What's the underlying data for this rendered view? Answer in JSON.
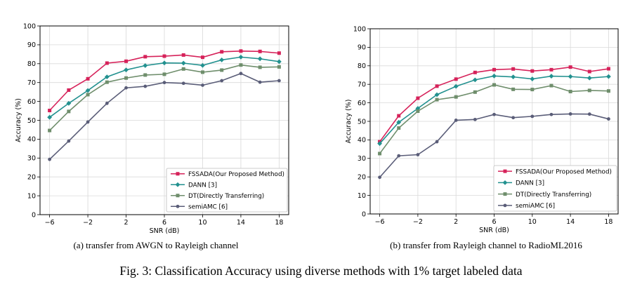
{
  "figure_caption": "Fig. 3: Classification Accuracy using diverse methods with 1% target labeled data",
  "colors": {
    "fssada": "#d6225a",
    "dann": "#22918f",
    "dt": "#6f8e6c",
    "semiamc": "#5a5d78",
    "grid": "#d9d9d9"
  },
  "chart_data": [
    {
      "type": "line",
      "caption": "(a) transfer from AWGN to Rayleigh channel",
      "xlabel": "SNR (dB)",
      "ylabel": "Accuracy (%)",
      "xlim": [
        -7,
        19
      ],
      "ylim": [
        0,
        100
      ],
      "xticks": [
        -6,
        -2,
        2,
        6,
        10,
        14,
        18
      ],
      "xtick_labels": [
        "−6",
        "−2",
        "2",
        "6",
        "10",
        "14",
        "18"
      ],
      "yticks": [
        0,
        10,
        20,
        30,
        40,
        50,
        60,
        70,
        80,
        90,
        100
      ],
      "grid": true,
      "legend_position": "bottom-right",
      "x": [
        -6,
        -4,
        -2,
        0,
        2,
        4,
        6,
        8,
        10,
        12,
        14,
        16,
        18
      ],
      "series": [
        {
          "name": "FSSADA(Our Proposed Method)",
          "key": "fssada",
          "marker": "square",
          "values": [
            55.2,
            66.0,
            72.0,
            80.3,
            81.3,
            83.7,
            84.0,
            84.6,
            83.4,
            86.3,
            86.7,
            86.5,
            85.6
          ]
        },
        {
          "name": "DANN [3]",
          "key": "dann",
          "marker": "diamond",
          "values": [
            51.6,
            59.0,
            65.8,
            73.0,
            76.7,
            79.0,
            80.4,
            80.3,
            79.1,
            82.0,
            83.5,
            82.6,
            81.1
          ]
        },
        {
          "name": "DT(Directly Transferring)",
          "key": "dt",
          "marker": "square",
          "values": [
            44.6,
            54.7,
            63.6,
            70.2,
            72.4,
            74.0,
            74.4,
            77.2,
            75.5,
            76.6,
            79.3,
            78.1,
            78.3
          ]
        },
        {
          "name": "semiAMC [6]",
          "key": "semiamc",
          "marker": "circle",
          "values": [
            29.3,
            39.0,
            49.1,
            59.0,
            67.2,
            68.0,
            70.0,
            69.6,
            68.6,
            71.0,
            74.8,
            70.2,
            71.0
          ]
        }
      ]
    },
    {
      "type": "line",
      "caption": "(b) transfer from Rayleigh channel to RadioML2016",
      "xlabel": "SNR (dB)",
      "ylabel": "Accuracy (%)",
      "xlim": [
        -7,
        19
      ],
      "ylim": [
        0,
        100
      ],
      "xticks": [
        -6,
        -2,
        2,
        6,
        10,
        14,
        18
      ],
      "xtick_labels": [
        "−6",
        "−2",
        "2",
        "6",
        "10",
        "14",
        "18"
      ],
      "yticks": [
        0,
        10,
        20,
        30,
        40,
        50,
        60,
        70,
        80,
        90,
        100
      ],
      "grid": true,
      "legend_position": "bottom-right",
      "x": [
        -6,
        -4,
        -2,
        0,
        2,
        4,
        6,
        8,
        10,
        12,
        14,
        16,
        18
      ],
      "series": [
        {
          "name": "FSSADA(Our Proposed Method)",
          "key": "fssada",
          "marker": "square",
          "values": [
            39.0,
            53.0,
            62.5,
            69.0,
            72.8,
            76.4,
            77.9,
            78.3,
            77.2,
            77.9,
            79.3,
            76.9,
            78.4
          ]
        },
        {
          "name": "DANN [3]",
          "key": "dann",
          "marker": "diamond",
          "values": [
            38.0,
            49.5,
            57.0,
            64.4,
            68.9,
            72.4,
            74.5,
            74.0,
            72.9,
            74.4,
            74.2,
            73.4,
            74.2
          ]
        },
        {
          "name": "DT(Directly Transferring)",
          "key": "dt",
          "marker": "square",
          "values": [
            32.6,
            46.4,
            55.5,
            61.7,
            63.2,
            65.8,
            69.7,
            67.3,
            67.2,
            69.3,
            66.1,
            66.7,
            66.4
          ]
        },
        {
          "name": "semiAMC [6]",
          "key": "semiamc",
          "marker": "circle",
          "values": [
            19.8,
            31.4,
            32.0,
            39.0,
            50.6,
            51.0,
            53.7,
            52.0,
            52.7,
            53.7,
            54.0,
            53.9,
            51.3
          ]
        }
      ]
    }
  ]
}
